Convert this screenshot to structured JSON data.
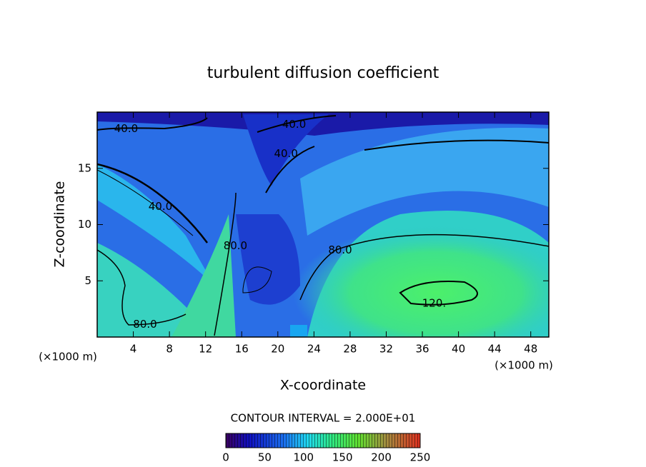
{
  "chart_data": {
    "type": "contour",
    "title": "turbulent diffusion coefficient",
    "xlabel": "X-coordinate",
    "ylabel": "Z-coordinate",
    "x_unit": "(×1000 m)",
    "xlim": [
      0,
      50
    ],
    "xticks": [
      4,
      8,
      12,
      16,
      20,
      24,
      28,
      32,
      36,
      40,
      44,
      48
    ],
    "ylim": [
      0,
      20
    ],
    "yticks": [
      5,
      10,
      15
    ],
    "contour_interval": "CONTOUR INTERVAL = 2.000E+01",
    "contour_labels": [
      {
        "value": 40,
        "label": "40.0",
        "x": 3.2,
        "y": 18.5
      },
      {
        "value": 40,
        "label": "40.0",
        "x": 21.8,
        "y": 18.9
      },
      {
        "value": 40,
        "label": "40.0",
        "x": 20.9,
        "y": 16.3
      },
      {
        "value": 40,
        "label": "40.0",
        "x": 7.0,
        "y": 11.6
      },
      {
        "value": 80,
        "label": "80.0",
        "x": 15.3,
        "y": 8.1
      },
      {
        "value": 80,
        "label": "80.0",
        "x": 26.9,
        "y": 7.7
      },
      {
        "value": 80,
        "label": "80.0",
        "x": 5.3,
        "y": 1.1
      },
      {
        "value": 120,
        "label": "120.",
        "x": 37.3,
        "y": 3.0
      }
    ],
    "colorbar": {
      "lim": [
        0,
        250
      ],
      "ticks": [
        0,
        50,
        100,
        150,
        200,
        250
      ]
    }
  }
}
